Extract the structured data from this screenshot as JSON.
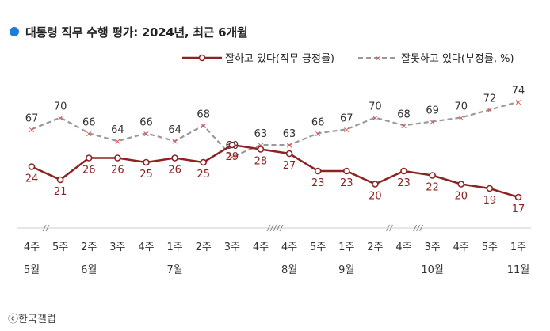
{
  "title": "대통령 직무 수행 평가: 2024년, 최근 6개월",
  "copyright": "ⓒ한국갤럽",
  "colors": {
    "title_dot": "#1f7bd6",
    "positive": "#8b2323",
    "negative": "#999999",
    "negative_marker": "#d9534f"
  },
  "chart_data": {
    "type": "line",
    "title": "대통령 직무 수행 평가: 2024년, 최근 6개월",
    "xlabel": "",
    "ylabel": "",
    "ylim": [
      0,
      80
    ],
    "grid": false,
    "legend": "top-right",
    "x_week_labels": [
      "4주",
      "5주",
      "2주",
      "3주",
      "4주",
      "1주",
      "2주",
      "3주",
      "4주",
      "4주",
      "5주",
      "1주",
      "2주",
      "4주",
      "3주",
      "4주",
      "5주",
      "1주"
    ],
    "x_month_labels": [
      "5월",
      "",
      "6월",
      "",
      "",
      "7월",
      "",
      "",
      "",
      "8월",
      "",
      "9월",
      "",
      "",
      "10월",
      "",
      "",
      "11월"
    ],
    "series": [
      {
        "name": "잘하고 있다(직무 긍정률)",
        "style": "solid",
        "values": [
          24,
          21,
          26,
          26,
          25,
          26,
          25,
          29,
          28,
          27,
          23,
          23,
          20,
          23,
          22,
          20,
          19,
          17
        ]
      },
      {
        "name": "잘못하고 있다(부정률, %)",
        "style": "dashed",
        "values": [
          67,
          70,
          66,
          64,
          66,
          64,
          68,
          60,
          63,
          63,
          66,
          67,
          70,
          68,
          69,
          70,
          72,
          74
        ]
      }
    ]
  }
}
